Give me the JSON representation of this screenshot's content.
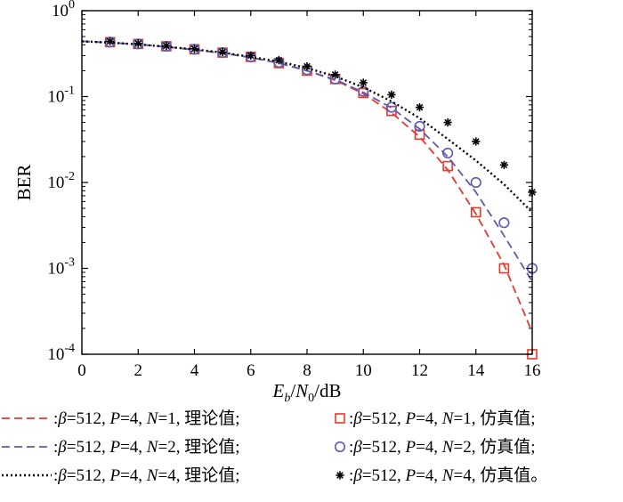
{
  "chart_data": {
    "type": "line",
    "x_scale": "linear",
    "y_scale": "log",
    "xlim": [
      0,
      16
    ],
    "ylim": [
      0.0001,
      1
    ],
    "x_ticks": [
      "0",
      "2",
      "4",
      "6",
      "8",
      "10",
      "12",
      "14",
      "16"
    ],
    "y_ticks": [
      {
        "base": "10",
        "exp": "0"
      },
      {
        "base": "10",
        "exp": "-1"
      },
      {
        "base": "10",
        "exp": "-2"
      },
      {
        "base": "10",
        "exp": "-3"
      },
      {
        "base": "10",
        "exp": "-4"
      }
    ],
    "xlabel": {
      "E": "E",
      "b": "b",
      "sep1": "/",
      "N": "N",
      "zero": "0",
      "sep2": "/dB"
    },
    "ylabel": "BER",
    "series": [
      {
        "name": "β=512, P=4, N=1, 理论值",
        "kind": "theory",
        "style": "dashed",
        "color": "#e8372b",
        "x": [
          0,
          1,
          2,
          3,
          4,
          5,
          6,
          7,
          8,
          9,
          10,
          11,
          12,
          13,
          14,
          15,
          16
        ],
        "y": [
          0.44,
          0.425,
          0.405,
          0.38,
          0.35,
          0.32,
          0.285,
          0.245,
          0.2,
          0.155,
          0.108,
          0.065,
          0.034,
          0.014,
          0.0043,
          0.0011,
          0.00018
        ]
      },
      {
        "name": "β=512, P=4, N=1, 仿真值",
        "kind": "simulation",
        "marker": "square",
        "color": "#e8372b",
        "x": [
          1,
          2,
          3,
          4,
          5,
          6,
          7,
          8,
          9,
          10,
          11,
          12,
          13,
          14,
          15,
          16
        ],
        "y": [
          0.43,
          0.41,
          0.385,
          0.355,
          0.325,
          0.29,
          0.245,
          0.2,
          0.16,
          0.11,
          0.068,
          0.036,
          0.0155,
          0.0045,
          0.001,
          0.0001
        ]
      },
      {
        "name": "β=512, P=4, N=2, 理论值",
        "kind": "theory",
        "style": "dashed",
        "color": "#5b5bb0",
        "x": [
          0,
          1,
          2,
          3,
          4,
          5,
          6,
          7,
          8,
          9,
          10,
          11,
          12,
          13,
          14,
          15,
          16
        ],
        "y": [
          0.44,
          0.425,
          0.405,
          0.38,
          0.35,
          0.32,
          0.285,
          0.245,
          0.2,
          0.158,
          0.112,
          0.074,
          0.042,
          0.02,
          0.0077,
          0.0024,
          0.0007
        ]
      },
      {
        "name": "β=512, P=4, N=2, 仿真值",
        "kind": "simulation",
        "marker": "circle",
        "color": "#5b5bb0",
        "x": [
          1,
          2,
          3,
          4,
          5,
          6,
          7,
          8,
          9,
          10,
          11,
          12,
          13,
          14,
          15,
          16
        ],
        "y": [
          0.43,
          0.41,
          0.385,
          0.355,
          0.325,
          0.29,
          0.25,
          0.205,
          0.16,
          0.115,
          0.075,
          0.045,
          0.022,
          0.01,
          0.0034,
          0.001
        ]
      },
      {
        "name": "β=512, P=4, N=4, 理论值",
        "kind": "theory",
        "style": "dotted",
        "color": "#000000",
        "x": [
          0,
          1,
          2,
          3,
          4,
          5,
          6,
          7,
          8,
          9,
          10,
          11,
          12,
          13,
          14,
          15,
          16
        ],
        "y": [
          0.44,
          0.425,
          0.405,
          0.38,
          0.355,
          0.325,
          0.29,
          0.255,
          0.215,
          0.172,
          0.128,
          0.088,
          0.056,
          0.032,
          0.018,
          0.0095,
          0.0045
        ]
      },
      {
        "name": "β=512, P=4, N=4, 仿真值",
        "kind": "simulation",
        "marker": "asterisk",
        "color": "#000000",
        "x": [
          1,
          2,
          3,
          4,
          5,
          6,
          7,
          8,
          9,
          10,
          11,
          12,
          13,
          14,
          15,
          16
        ],
        "y": [
          0.44,
          0.415,
          0.39,
          0.36,
          0.33,
          0.3,
          0.265,
          0.225,
          0.18,
          0.145,
          0.105,
          0.075,
          0.05,
          0.03,
          0.016,
          0.0077
        ]
      }
    ],
    "legend": [
      {
        "series": 0,
        "sep": ":",
        "beta": "β",
        "beta_val": "=512, ",
        "P": "P",
        "P_val": "=4, ",
        "N": "N",
        "N_val": "=1, ",
        "word": "理论值",
        "end": ";"
      },
      {
        "series": 1,
        "sep": ":",
        "beta": "β",
        "beta_val": "=512, ",
        "P": "P",
        "P_val": "=4, ",
        "N": "N",
        "N_val": "=1, ",
        "word": "仿真值",
        "end": ";"
      },
      {
        "series": 2,
        "sep": ":",
        "beta": "β",
        "beta_val": "=512, ",
        "P": "P",
        "P_val": "=4, ",
        "N": "N",
        "N_val": "=2, ",
        "word": "理论值",
        "end": ";"
      },
      {
        "series": 3,
        "sep": ":",
        "beta": "β",
        "beta_val": "=512, ",
        "P": "P",
        "P_val": "=4, ",
        "N": "N",
        "N_val": "=2, ",
        "word": "仿真值",
        "end": ";"
      },
      {
        "series": 4,
        "sep": ":",
        "beta": "β",
        "beta_val": "=512, ",
        "P": "P",
        "P_val": "=4, ",
        "N": "N",
        "N_val": "=4, ",
        "word": "理论值",
        "end": ";"
      },
      {
        "series": 5,
        "sep": ":",
        "beta": "β",
        "beta_val": "=512, ",
        "P": "P",
        "P_val": "=4, ",
        "N": "N",
        "N_val": "=4, ",
        "word": "仿真值",
        "end": "。"
      }
    ]
  }
}
